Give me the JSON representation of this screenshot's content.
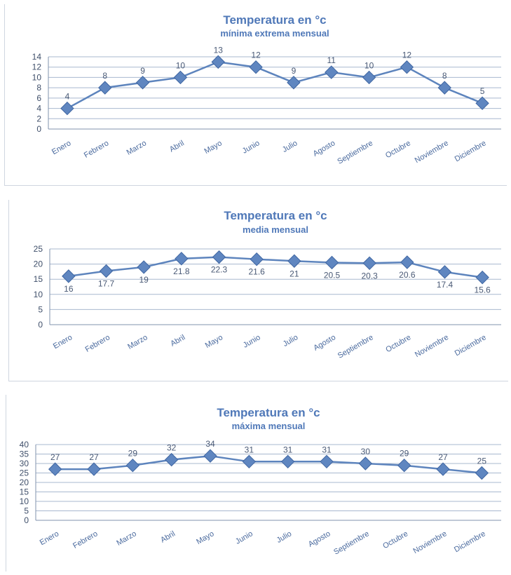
{
  "chart_data": [
    {
      "type": "line",
      "title": "Temperatura en °c",
      "subtitle": "mínima extrema mensual",
      "categories": [
        "Enero",
        "Febrero",
        "Marzo",
        "Abril",
        "Mayo",
        "Junio",
        "Julio",
        "Agosto",
        "Septiembre",
        "Octubre",
        "Noviembre",
        "Diciembre"
      ],
      "values": [
        4,
        8,
        9,
        10,
        13,
        12,
        9,
        11,
        10,
        12,
        8,
        5
      ],
      "data_labels": [
        "4",
        "8",
        "9",
        "10",
        "13",
        "12",
        "9",
        "11",
        "10",
        "12",
        "8",
        "5"
      ],
      "ylim": [
        0,
        14
      ],
      "yticks": [
        "0",
        "2",
        "4",
        "6",
        "8",
        "10",
        "12",
        "14"
      ],
      "label_position": "above",
      "grid": true,
      "color": "#5f86c0"
    },
    {
      "type": "line",
      "title": "Temperatura en °c",
      "subtitle": "media mensual",
      "categories": [
        "Enero",
        "Febrero",
        "Marzo",
        "Abril",
        "Mayo",
        "Junio",
        "Julio",
        "Agosto",
        "Septiembre",
        "Octubre",
        "Noviembre",
        "Diciembre"
      ],
      "values": [
        16,
        17.7,
        19,
        21.8,
        22.3,
        21.6,
        21,
        20.5,
        20.3,
        20.6,
        17.4,
        15.6
      ],
      "data_labels": [
        "16",
        "17.7",
        "19",
        "21.8",
        "22.3",
        "21.6",
        "21",
        "20.5",
        "20.3",
        "20.6",
        "17.4",
        "15.6"
      ],
      "ylim": [
        0,
        25
      ],
      "yticks": [
        "0",
        "5",
        "10",
        "15",
        "20",
        "25"
      ],
      "label_position": "below",
      "grid": true,
      "color": "#5f86c0"
    },
    {
      "type": "line",
      "title": "Temperatura en °c",
      "subtitle": "máxima mensual",
      "categories": [
        "Enero",
        "Febrero",
        "Marzo",
        "Abril",
        "Mayo",
        "Junio",
        "Julio",
        "Agosto",
        "Septiembre",
        "Octubre",
        "Noviembre",
        "Diciembre"
      ],
      "values": [
        27,
        27,
        29,
        32,
        34,
        31,
        31,
        31,
        30,
        29,
        27,
        25
      ],
      "data_labels": [
        "27",
        "27",
        "29",
        "32",
        "34",
        "31",
        "31",
        "31",
        "30",
        "29",
        "27",
        "25"
      ],
      "ylim": [
        0,
        40
      ],
      "yticks": [
        "0",
        "5",
        "10",
        "15",
        "20",
        "25",
        "30",
        "35",
        "40"
      ],
      "label_position": "above",
      "grid": true,
      "color": "#5f86c0"
    }
  ]
}
